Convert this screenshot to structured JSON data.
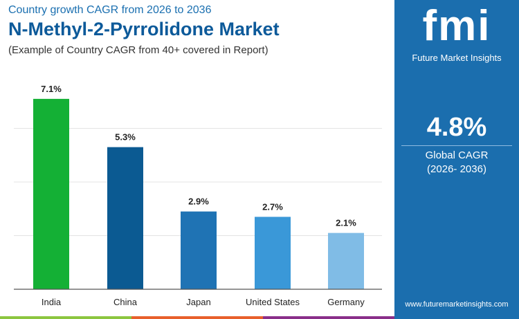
{
  "header": {
    "subtitle_top": "Country growth CAGR from 2026 to 2036",
    "title": "N-Methyl-2-Pyrrolidone Market",
    "note": "(Example of Country CAGR from 40+ covered in Report)"
  },
  "panel": {
    "logo_text": "fmi",
    "logo_caption": "Future Market Insights",
    "value": "4.8%",
    "label": "Global CAGR",
    "period": "(2026- 2036)",
    "url": "www.futuremarketinsights.com",
    "bg": "#1b6eae"
  },
  "chart_data": {
    "type": "bar",
    "categories": [
      "India",
      "China",
      "Japan",
      "United States",
      "Germany"
    ],
    "values": [
      7.1,
      5.3,
      2.9,
      2.7,
      2.1
    ],
    "labels": [
      "7.1%",
      "5.3%",
      "2.9%",
      "2.7%",
      "2.1%"
    ],
    "colors": [
      "#14b035",
      "#0b5a92",
      "#1f73b4",
      "#3a98d8",
      "#80bce6"
    ],
    "ylim": [
      0,
      8
    ],
    "grid": true
  }
}
